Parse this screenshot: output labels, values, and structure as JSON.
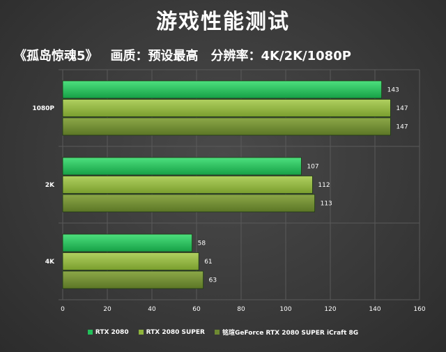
{
  "header": {
    "title": "游戏性能测试",
    "subtitle_game": "《孤岛惊魂5》",
    "subtitle_quality": "画质：预设最高",
    "subtitle_resolution": "分辨率：4K/2K/1080P"
  },
  "colors": {
    "series_1": "#22c05a",
    "series_2": "#8fb43c",
    "series_3": "#6e8a32",
    "grid": "#5a5a5a"
  },
  "chart_data": {
    "type": "bar",
    "orientation": "horizontal",
    "categories": [
      "1080P",
      "2K",
      "4K"
    ],
    "series": [
      {
        "name": "RTX 2080",
        "values": [
          143,
          107,
          58
        ]
      },
      {
        "name": "RTX 2080 SUPER",
        "values": [
          147,
          112,
          61
        ]
      },
      {
        "name": "铭瑄GeForce RTX 2080 SUPER iCraft 8G",
        "values": [
          147,
          113,
          63
        ]
      }
    ],
    "xlim": [
      0,
      160
    ],
    "xticks": [
      "0",
      "20",
      "40",
      "60",
      "80",
      "100",
      "120",
      "140",
      "160"
    ],
    "grid": true,
    "legend_position": "bottom"
  }
}
